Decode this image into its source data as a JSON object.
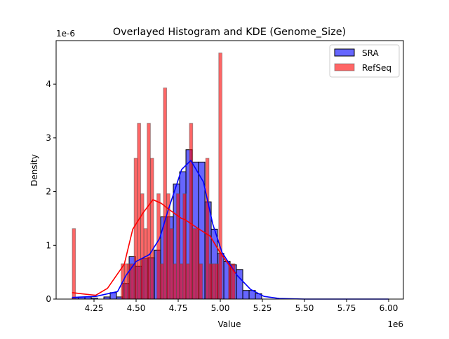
{
  "chart_data": {
    "type": "histogram+kde",
    "title": "Overlayed Histogram and KDE (Genome_Size)",
    "xlabel": "Value",
    "ylabel": "Density",
    "x_offset_label": "1e6",
    "y_offset_label": "1e-6",
    "xlim": [
      4.025,
      6.0875
    ],
    "ylim": [
      0,
      4.81
    ],
    "x_ticks": [
      "4.25",
      "4.50",
      "4.75",
      "5.00",
      "5.25",
      "5.50",
      "5.75",
      "6.00"
    ],
    "y_ticks": [
      "0",
      "1",
      "2",
      "3",
      "4"
    ],
    "grid": false,
    "legend_placement": "top-right",
    "series": [
      {
        "name": "SRA",
        "color": "#0000ff",
        "bin_start": 4.121,
        "bin_width": 0.0375,
        "densities": [
          0.03,
          0.04,
          0.04,
          0.02,
          0.0,
          0.04,
          0.12,
          0.04,
          0.29,
          0.79,
          0.61,
          0.75,
          0.77,
          0.91,
          1.53,
          1.53,
          2.14,
          2.37,
          2.78,
          2.55,
          2.55,
          1.81,
          1.3,
          0.85,
          0.7,
          0.64,
          0.55,
          0.16,
          0.16,
          0.1
        ],
        "kde": [
          [
            4.12,
            0.03
          ],
          [
            4.26,
            0.05
          ],
          [
            4.39,
            0.14
          ],
          [
            4.44,
            0.44
          ],
          [
            4.5,
            0.7
          ],
          [
            4.58,
            0.83
          ],
          [
            4.64,
            1.13
          ],
          [
            4.69,
            1.65
          ],
          [
            4.77,
            2.41
          ],
          [
            4.825,
            2.58
          ],
          [
            4.9,
            2.18
          ],
          [
            4.955,
            1.4
          ],
          [
            5.01,
            0.87
          ],
          [
            5.1,
            0.44
          ],
          [
            5.18,
            0.18
          ],
          [
            5.26,
            0.05
          ],
          [
            5.35,
            0.01
          ],
          [
            5.5,
            0.0
          ],
          [
            6.0,
            0.0
          ]
        ]
      },
      {
        "name": "RefSeq",
        "color": "#ff0000",
        "bin_start": 4.121,
        "bin_width": 0.01933,
        "densities": [
          1.31,
          0,
          0,
          0,
          0,
          0,
          0,
          0,
          0,
          0,
          0,
          0,
          0,
          0,
          0,
          0.655,
          0.655,
          0.655,
          0.655,
          2.62,
          3.27,
          1.96,
          1.31,
          3.27,
          2.62,
          0,
          1.96,
          0.655,
          3.93,
          1.96,
          1.31,
          0.655,
          1.96,
          0.655,
          1.96,
          0.655,
          3.27,
          1.31,
          1.31,
          0.655,
          0,
          2.62,
          0.655,
          0.655,
          0.655,
          4.58,
          0,
          0,
          0.655,
          0.655
        ],
        "kde": [
          [
            4.12,
            0.12
          ],
          [
            4.2,
            0.09
          ],
          [
            4.26,
            0.07
          ],
          [
            4.33,
            0.2
          ],
          [
            4.43,
            0.65
          ],
          [
            4.48,
            1.3
          ],
          [
            4.54,
            1.6
          ],
          [
            4.6,
            1.85
          ],
          [
            4.65,
            1.78
          ],
          [
            4.69,
            1.68
          ],
          [
            4.77,
            1.5
          ],
          [
            4.79,
            1.48
          ],
          [
            4.87,
            1.31
          ],
          [
            4.94,
            1.17
          ],
          [
            4.99,
            0.91
          ],
          [
            5.05,
            0.64
          ],
          [
            5.09,
            0.48
          ]
        ]
      }
    ]
  }
}
